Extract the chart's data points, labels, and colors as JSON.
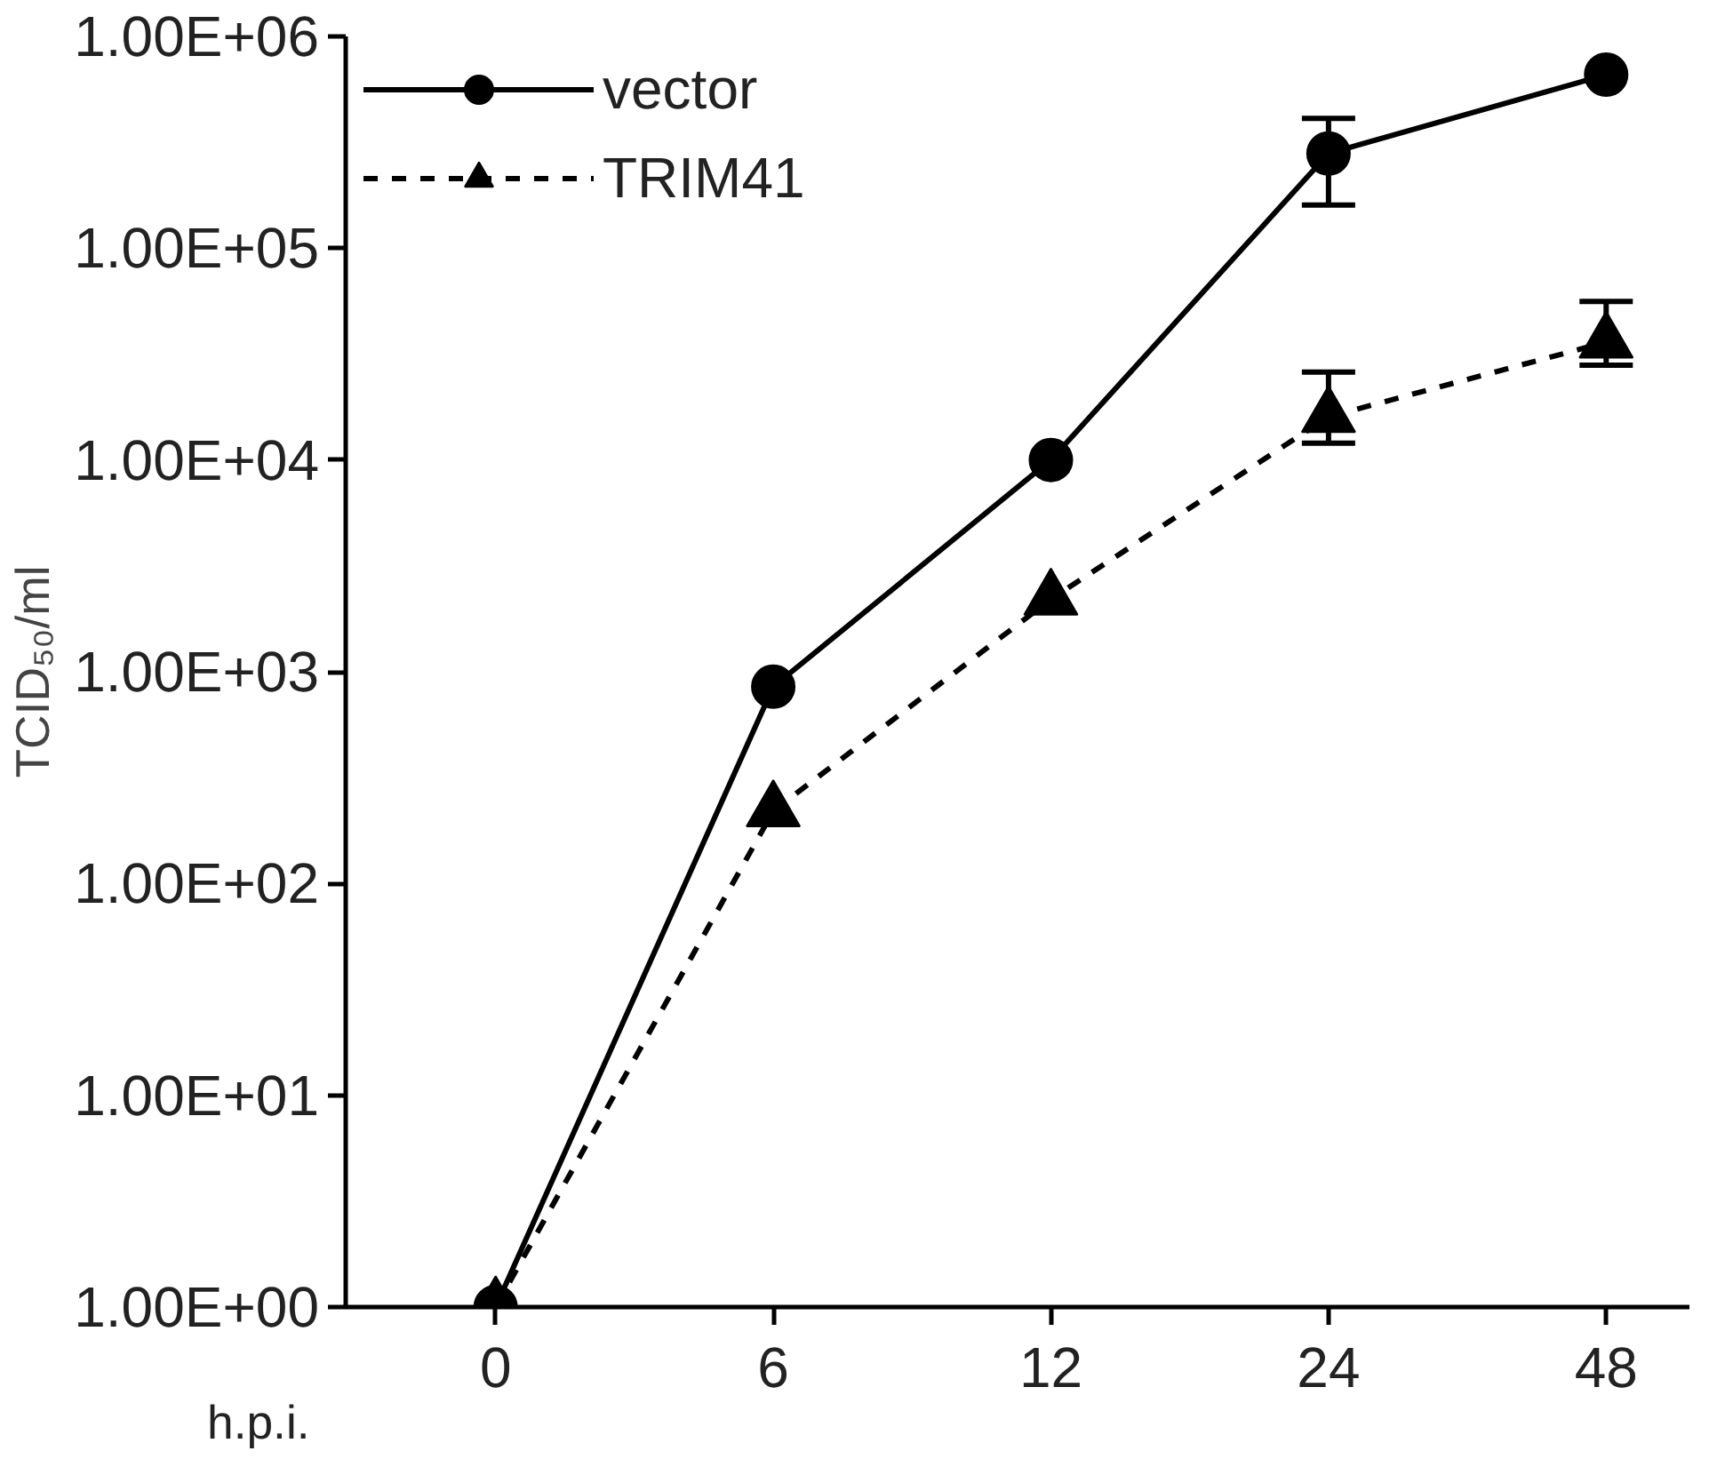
{
  "chart_data": {
    "type": "line",
    "ylabel": "TCID₅₀/ml",
    "xlabel": "h.p.i.",
    "categories": [
      "0",
      "6",
      "12",
      "24",
      "48"
    ],
    "series": [
      {
        "name": "vector",
        "color": "#000000",
        "marker": "circle",
        "line_style": "solid",
        "values": [
          1,
          850,
          10000,
          280000,
          660000
        ],
        "errors": [
          null,
          null,
          null,
          [
            160000,
            410000
          ],
          null
        ]
      },
      {
        "name": "TRIM41",
        "color": "#000000",
        "marker": "triangle",
        "line_style": "dashed",
        "values": [
          1,
          220,
          2200,
          16000,
          36000
        ],
        "errors": [
          null,
          null,
          null,
          [
            12000,
            26000
          ],
          [
            28000,
            56000
          ]
        ]
      }
    ],
    "log": "y",
    "ylim": [
      1,
      1000000
    ],
    "yticks": [
      {
        "value": 1,
        "label": "1.00E+00"
      },
      {
        "value": 10,
        "label": "1.00E+01"
      },
      {
        "value": 100,
        "label": "1.00E+02"
      },
      {
        "value": 1000,
        "label": "1.00E+03"
      },
      {
        "value": 10000,
        "label": "1.00E+04"
      },
      {
        "value": 100000,
        "label": "1.00E+05"
      },
      {
        "value": 1000000,
        "label": "1.00E+06"
      }
    ],
    "grid": false,
    "legend": "top left"
  }
}
